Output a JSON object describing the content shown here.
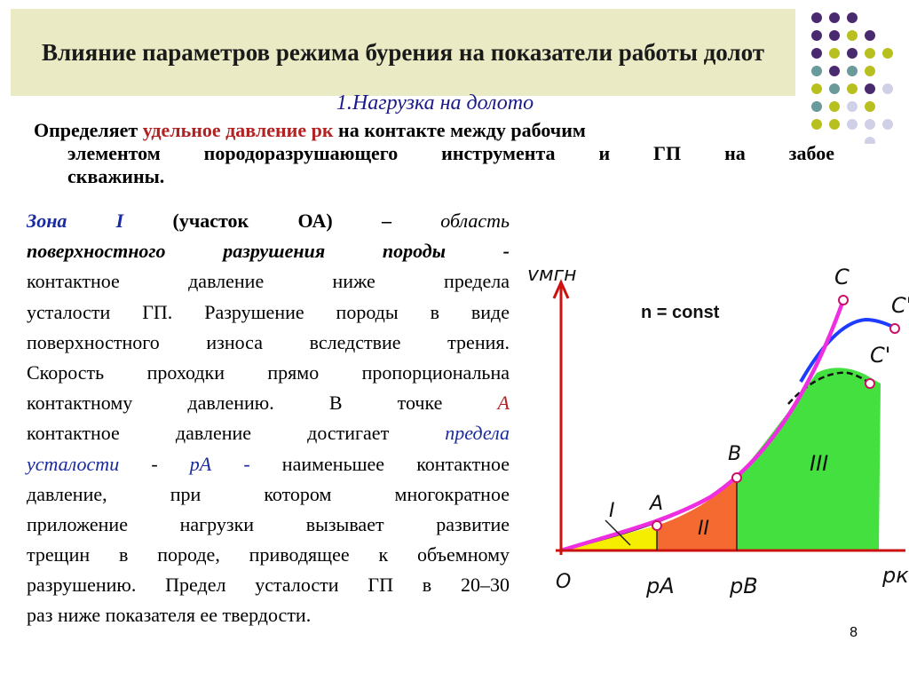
{
  "title": "Влияние параметров режима бурения на показатели работы долот",
  "subtitle": "1.Нагрузка на долото",
  "intro": {
    "l1a": "Определяет ",
    "l1b": "удельное давление ",
    "l1c": "рк",
    "l1d": "  на контакте между рабочим",
    "l2": "элементом породоразрушающего инструмента и ГП на забое",
    "l3": "скважины."
  },
  "body": {
    "zona": "Зона I",
    "uchastok": " (участок ОА) – ",
    "oblast": "область",
    "l2": "поверхностного разрушения породы -",
    "l3": "контактное давление ниже предела",
    "l4": "усталости ГП. Разрушение породы в виде",
    "l5": "поверхностного износа вследствие трения.",
    "l6": "Скорость проходки прямо пропорциональна",
    "l7a": "контактному давлению. В точке ",
    "l7b": "А",
    "l8a": "контактное давление достигает ",
    "l8b": "предела",
    "l9a": "усталости",
    "l9b": " - ",
    "l9c": "рА -",
    "l9d": " наименьшее контактное",
    "l10": "давление, при котором многократное",
    "l11": "приложение нагрузки вызывает развитие",
    "l12": "трещин в породе, приводящее к объемному",
    "l13": "разрушению. Предел усталости ГП в 20–30",
    "l14": "раз ниже показателя ее твердости."
  },
  "chart": {
    "y_label": "vмгн",
    "x_label": "рк",
    "n_label": "n = const",
    "origin": "O",
    "x_ticks": [
      "рА",
      "рВ"
    ],
    "points": [
      "A",
      "B",
      "C",
      "C'",
      "C'"
    ],
    "zones": [
      "I",
      "II",
      "III"
    ],
    "colors": {
      "zone1": "#f5ee00",
      "zone2": "#f56a30",
      "zone3": "#44e040",
      "curve_pink": "#ee2ee0",
      "curve_blue": "#1e3cff",
      "axes": "#cc1111"
    }
  },
  "page_number": "8"
}
